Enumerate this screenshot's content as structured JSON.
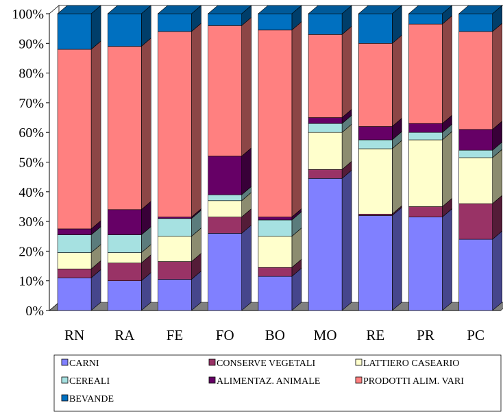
{
  "chart_data": {
    "type": "bar",
    "stacked": true,
    "three_d": true,
    "percent_stacked": true,
    "categories": [
      "RN",
      "RA",
      "FE",
      "FO",
      "BO",
      "MO",
      "RE",
      "PR",
      "PC"
    ],
    "y_ticks": [
      "0%",
      "10%",
      "20%",
      "30%",
      "40%",
      "50%",
      "60%",
      "70%",
      "80%",
      "90%",
      "100%"
    ],
    "ylim": [
      0,
      100
    ],
    "grid": false,
    "legend_position": "bottom",
    "series": [
      {
        "name": "CARNI",
        "color": "#8080FF",
        "values": [
          11,
          10,
          10.5,
          26,
          11.5,
          44.5,
          32,
          31.5,
          24
        ]
      },
      {
        "name": "CONSERVE VEGETALI",
        "color": "#993366",
        "values": [
          3,
          6,
          6,
          5.5,
          3,
          3,
          0.5,
          3.5,
          12
        ]
      },
      {
        "name": "LATTIERO CASEARIO",
        "color": "#FFFFCC",
        "values": [
          5.5,
          3.5,
          8.5,
          5.5,
          10.5,
          12.5,
          22,
          22.5,
          15.5
        ]
      },
      {
        "name": "CEREALI",
        "color": "#A6E1E1",
        "values": [
          6,
          6,
          6,
          2,
          5.5,
          3,
          3,
          2.5,
          2.5
        ]
      },
      {
        "name": "ALIMENTAZ. ANIMALE",
        "color": "#660066",
        "values": [
          2,
          8.5,
          0.5,
          13,
          1,
          2,
          4.5,
          3,
          7
        ]
      },
      {
        "name": "PRODOTTI ALIM. VARI",
        "color": "#FF8080",
        "values": [
          60.5,
          55,
          62.5,
          44,
          63,
          28,
          28,
          33.5,
          33
        ]
      },
      {
        "name": "BEVANDE",
        "color": "#0070C0",
        "values": [
          12,
          11,
          6,
          4,
          5.5,
          7,
          10,
          3.5,
          6
        ]
      }
    ]
  }
}
